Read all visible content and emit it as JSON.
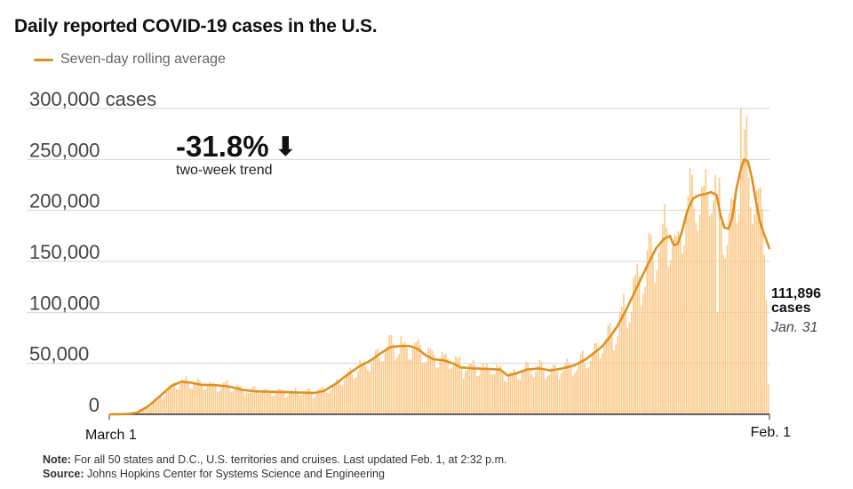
{
  "title": "Daily reported COVID-19 cases in the U.S.",
  "legend": {
    "label": "Seven-day rolling average",
    "color": "#e0901e"
  },
  "trend": {
    "value": "-31.8%",
    "arrow": "⬇",
    "label": "two-week trend"
  },
  "latest": {
    "value": "111,896",
    "unit": "cases",
    "date": "Jan. 31"
  },
  "notes": {
    "note_label": "Note:",
    "note_text": "For all 50 states and D.C., U.S. territories and cruises. Last updated Feb. 1, at 2:32 p.m.",
    "source_label": "Source:",
    "source_text": "Johns Hopkins Center for Systems Science and Engineering"
  },
  "chart_data": {
    "type": "bar",
    "title": "Daily reported COVID-19 cases in the U.S.",
    "xlabel": "",
    "ylabel": "cases",
    "ylim": [
      0,
      300000
    ],
    "yticks": [
      0,
      50000,
      100000,
      150000,
      200000,
      250000,
      300000
    ],
    "ytick_labels": [
      "0",
      "50,000",
      "100,000",
      "150,000",
      "200,000",
      "250,000",
      "300,000 cases"
    ],
    "x_labels": [
      "March 1",
      "Feb. 1"
    ],
    "grid": true,
    "bar_color": "#fbc98a",
    "series": [
      {
        "name": "Daily reported cases",
        "type": "bar",
        "day_count": 338
      },
      {
        "name": "Seven-day rolling average",
        "type": "line",
        "color": "#e0901e",
        "keypoints": [
          [
            0,
            0
          ],
          [
            8,
            200
          ],
          [
            14,
            1500
          ],
          [
            20,
            8000
          ],
          [
            26,
            18000
          ],
          [
            32,
            28000
          ],
          [
            37,
            32000
          ],
          [
            42,
            31000
          ],
          [
            47,
            29000
          ],
          [
            55,
            28500
          ],
          [
            62,
            27000
          ],
          [
            68,
            24000
          ],
          [
            75,
            22500
          ],
          [
            85,
            22000
          ],
          [
            95,
            21500
          ],
          [
            105,
            21000
          ],
          [
            110,
            23000
          ],
          [
            116,
            30000
          ],
          [
            122,
            39000
          ],
          [
            128,
            47000
          ],
          [
            134,
            53000
          ],
          [
            139,
            60000
          ],
          [
            144,
            66000
          ],
          [
            149,
            67000
          ],
          [
            154,
            67000
          ],
          [
            158,
            64000
          ],
          [
            162,
            58000
          ],
          [
            166,
            54000
          ],
          [
            171,
            53000
          ],
          [
            176,
            50000
          ],
          [
            180,
            46000
          ],
          [
            186,
            45000
          ],
          [
            194,
            44500
          ],
          [
            200,
            44000
          ],
          [
            204,
            38000
          ],
          [
            208,
            40000
          ],
          [
            214,
            44000
          ],
          [
            220,
            45000
          ],
          [
            226,
            43000
          ],
          [
            232,
            45000
          ],
          [
            238,
            48000
          ],
          [
            244,
            54000
          ],
          [
            248,
            60000
          ],
          [
            252,
            66000
          ],
          [
            256,
            75000
          ],
          [
            260,
            86000
          ],
          [
            264,
            100000
          ],
          [
            268,
            116000
          ],
          [
            272,
            132000
          ],
          [
            276,
            148000
          ],
          [
            280,
            163000
          ],
          [
            284,
            172000
          ],
          [
            287,
            175000
          ],
          [
            289,
            166000
          ],
          [
            291,
            167000
          ],
          [
            293,
            178000
          ],
          [
            296,
            200000
          ],
          [
            299,
            212000
          ],
          [
            302,
            215000
          ],
          [
            305,
            216000
          ],
          [
            308,
            218000
          ],
          [
            311,
            215000
          ],
          [
            313,
            195000
          ],
          [
            315,
            183000
          ],
          [
            317,
            182000
          ],
          [
            319,
            193000
          ],
          [
            321,
            220000
          ],
          [
            323,
            238000
          ],
          [
            325,
            250000
          ],
          [
            327,
            248000
          ],
          [
            329,
            232000
          ],
          [
            331,
            210000
          ],
          [
            333,
            190000
          ],
          [
            335,
            178000
          ],
          [
            337,
            168000
          ],
          [
            338,
            162000
          ],
          [
            339,
            150000
          ]
        ]
      }
    ]
  }
}
